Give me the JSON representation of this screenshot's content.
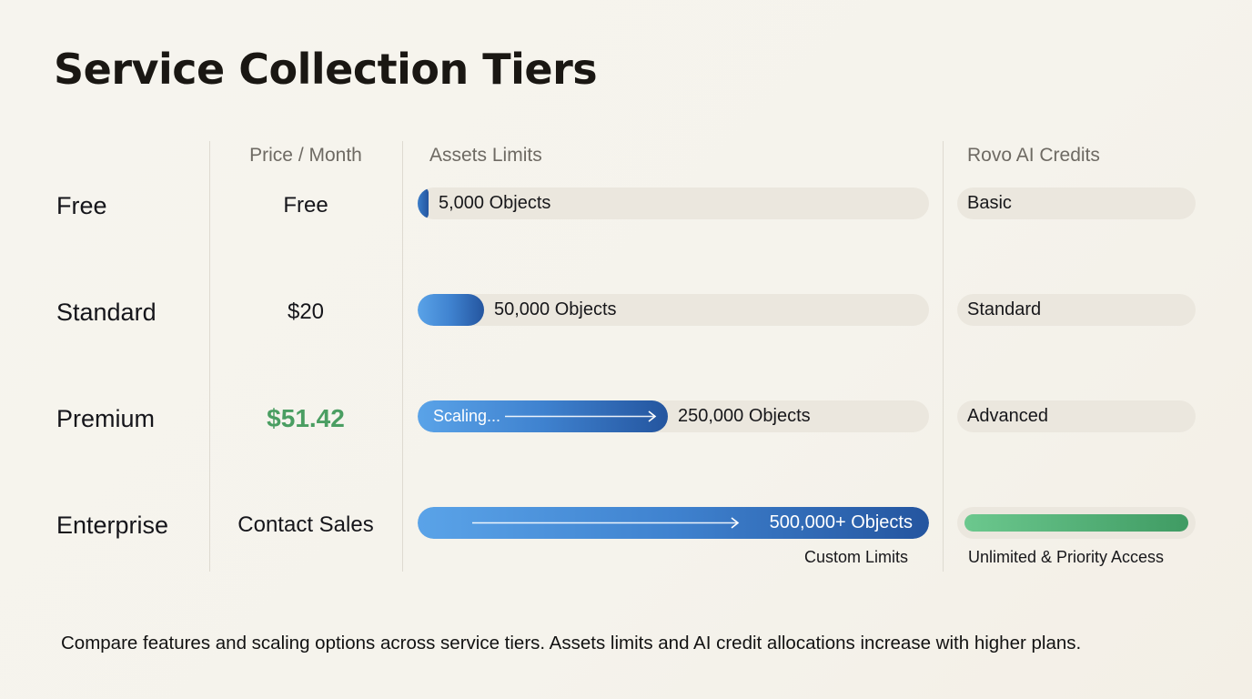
{
  "title": "Service Collection Tiers",
  "headers": {
    "price": "Price / Month",
    "assets": "Assets Limits",
    "rovo": "Rovo AI Credits"
  },
  "chart_data": {
    "type": "table",
    "columns": [
      "",
      "Price / Month",
      "Assets Limits",
      "Rovo AI Credits"
    ],
    "rows": [
      {
        "tier": "Free",
        "price": "Free",
        "assets_label": "5,000 Objects",
        "assets_objects": 5000,
        "assets_fill": 0.02,
        "rovo": "Basic"
      },
      {
        "tier": "Standard",
        "price": "$20",
        "assets_label": "50,000 Objects",
        "assets_objects": 50000,
        "assets_fill": 0.13,
        "rovo": "Standard"
      },
      {
        "tier": "Premium",
        "price": "$51.42",
        "price_highlight": true,
        "assets_label": "250,000 Objects",
        "assets_objects": 250000,
        "assets_fill": 0.49,
        "fill_label": "Scaling...",
        "rovo": "Advanced"
      },
      {
        "tier": "Enterprise",
        "price": "Contact Sales",
        "assets_label": "500,000+ Objects",
        "assets_objects": 500000,
        "assets_fill": 1.0,
        "assets_sublabel": "Custom Limits",
        "rovo": "",
        "rovo_fill": 1.0,
        "rovo_sublabel": "Unlimited & Priority Access"
      }
    ],
    "colors": {
      "assets_fill_start": "#5aa3e8",
      "assets_fill_end": "#24559f",
      "rovo_fill_start": "#6cc88e",
      "rovo_fill_end": "#3f9b63",
      "price_highlight": "#4a9e62",
      "track": "#ebe7de"
    }
  },
  "footer": "Compare features and scaling options across service tiers. Assets limits and AI credit allocations increase with higher plans."
}
